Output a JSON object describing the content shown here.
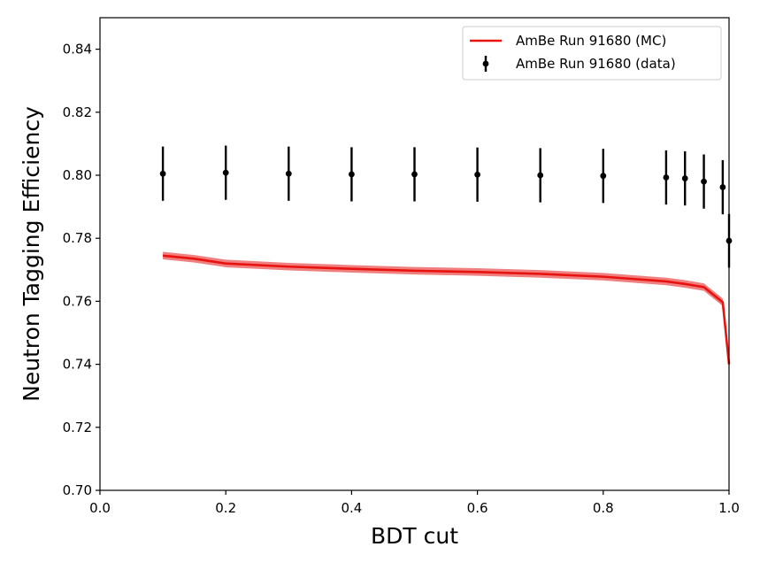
{
  "chart_data": {
    "type": "line",
    "xlabel": "BDT cut",
    "ylabel": "Neutron Tagging Efficiency",
    "xlim": [
      0.0,
      1.0
    ],
    "ylim": [
      0.7,
      0.85
    ],
    "xticks": [
      "0.0",
      "0.2",
      "0.4",
      "0.6",
      "0.8",
      "1.0"
    ],
    "yticks": [
      "0.70",
      "0.72",
      "0.74",
      "0.76",
      "0.78",
      "0.80",
      "0.82",
      "0.84"
    ],
    "legend_position": "top-right",
    "grid": false,
    "series": [
      {
        "name": "AmBe Run 91680 (MC)",
        "kind": "line-with-band",
        "color": "#e8130f",
        "band_color": "#f08080",
        "x": [
          0.1,
          0.15,
          0.2,
          0.3,
          0.4,
          0.5,
          0.6,
          0.7,
          0.8,
          0.9,
          0.93,
          0.96,
          0.99,
          1.0
        ],
        "y": [
          0.7745,
          0.7735,
          0.772,
          0.771,
          0.7703,
          0.7697,
          0.7693,
          0.7687,
          0.7678,
          0.7663,
          0.7655,
          0.7645,
          0.7597,
          0.74
        ],
        "band_halfwidth": 0.0012
      },
      {
        "name": "AmBe Run 91680 (data)",
        "kind": "errorbar",
        "color": "#000000",
        "x": [
          0.1,
          0.2,
          0.3,
          0.4,
          0.5,
          0.6,
          0.7,
          0.8,
          0.9,
          0.93,
          0.96,
          0.99,
          1.0
        ],
        "y": [
          0.8005,
          0.8008,
          0.8005,
          0.8003,
          0.8003,
          0.8002,
          0.8,
          0.7998,
          0.7993,
          0.799,
          0.798,
          0.7962,
          0.7792
        ],
        "yerr": [
          0.0086,
          0.0086,
          0.0086,
          0.0086,
          0.0086,
          0.0086,
          0.0086,
          0.0086,
          0.0086,
          0.0086,
          0.0086,
          0.0086,
          0.0085
        ]
      }
    ]
  }
}
